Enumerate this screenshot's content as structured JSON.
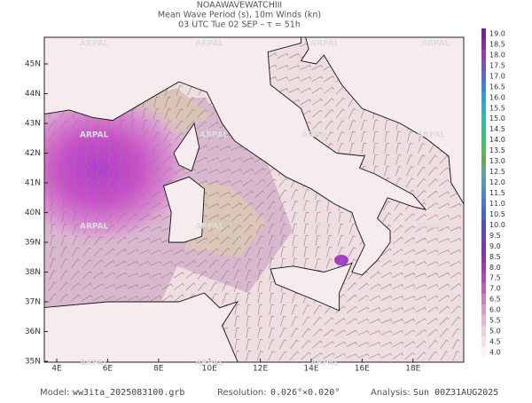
{
  "header": {
    "model_name": "NOAAWAVEWATCHIII",
    "subtitle": "Mean Wave Period (s), 10m Winds (kn)",
    "time": "03 UTC Tue 02 SEP  –  τ = 51h"
  },
  "watermark": "ARPAL",
  "map": {
    "lat_labels": [
      "45N",
      "44N",
      "43N",
      "42N",
      "41N",
      "40N",
      "39N",
      "38N",
      "37N",
      "36N",
      "35N"
    ],
    "lon_labels": [
      "4E",
      "6E",
      "8E",
      "10E",
      "12E",
      "14E",
      "16E",
      "18E"
    ]
  },
  "colorbar": {
    "labels": [
      "19.0",
      "18.5",
      "18.0",
      "17.5",
      "17.0",
      "16.5",
      "16.0",
      "15.5",
      "15.0",
      "14.5",
      "14.0",
      "13.5",
      "13.0",
      "12.5",
      "12.0",
      "11.5",
      "11.0",
      "10.5",
      "10.0",
      "9.5",
      "9.0",
      "8.5",
      "8.0",
      "7.5",
      "7.0",
      "6.5",
      "6.0",
      "5.5",
      "5.0",
      "4.5",
      "4.0"
    ]
  },
  "footer": {
    "model_label": "Model:",
    "model": "ww3ita_2025083100.grb",
    "resolution_label": "Resolution:",
    "resolution": "0.026°×0.020°",
    "analysis_label": "Analysis:",
    "analysis": "Sun 00Z31AUG2025"
  }
}
